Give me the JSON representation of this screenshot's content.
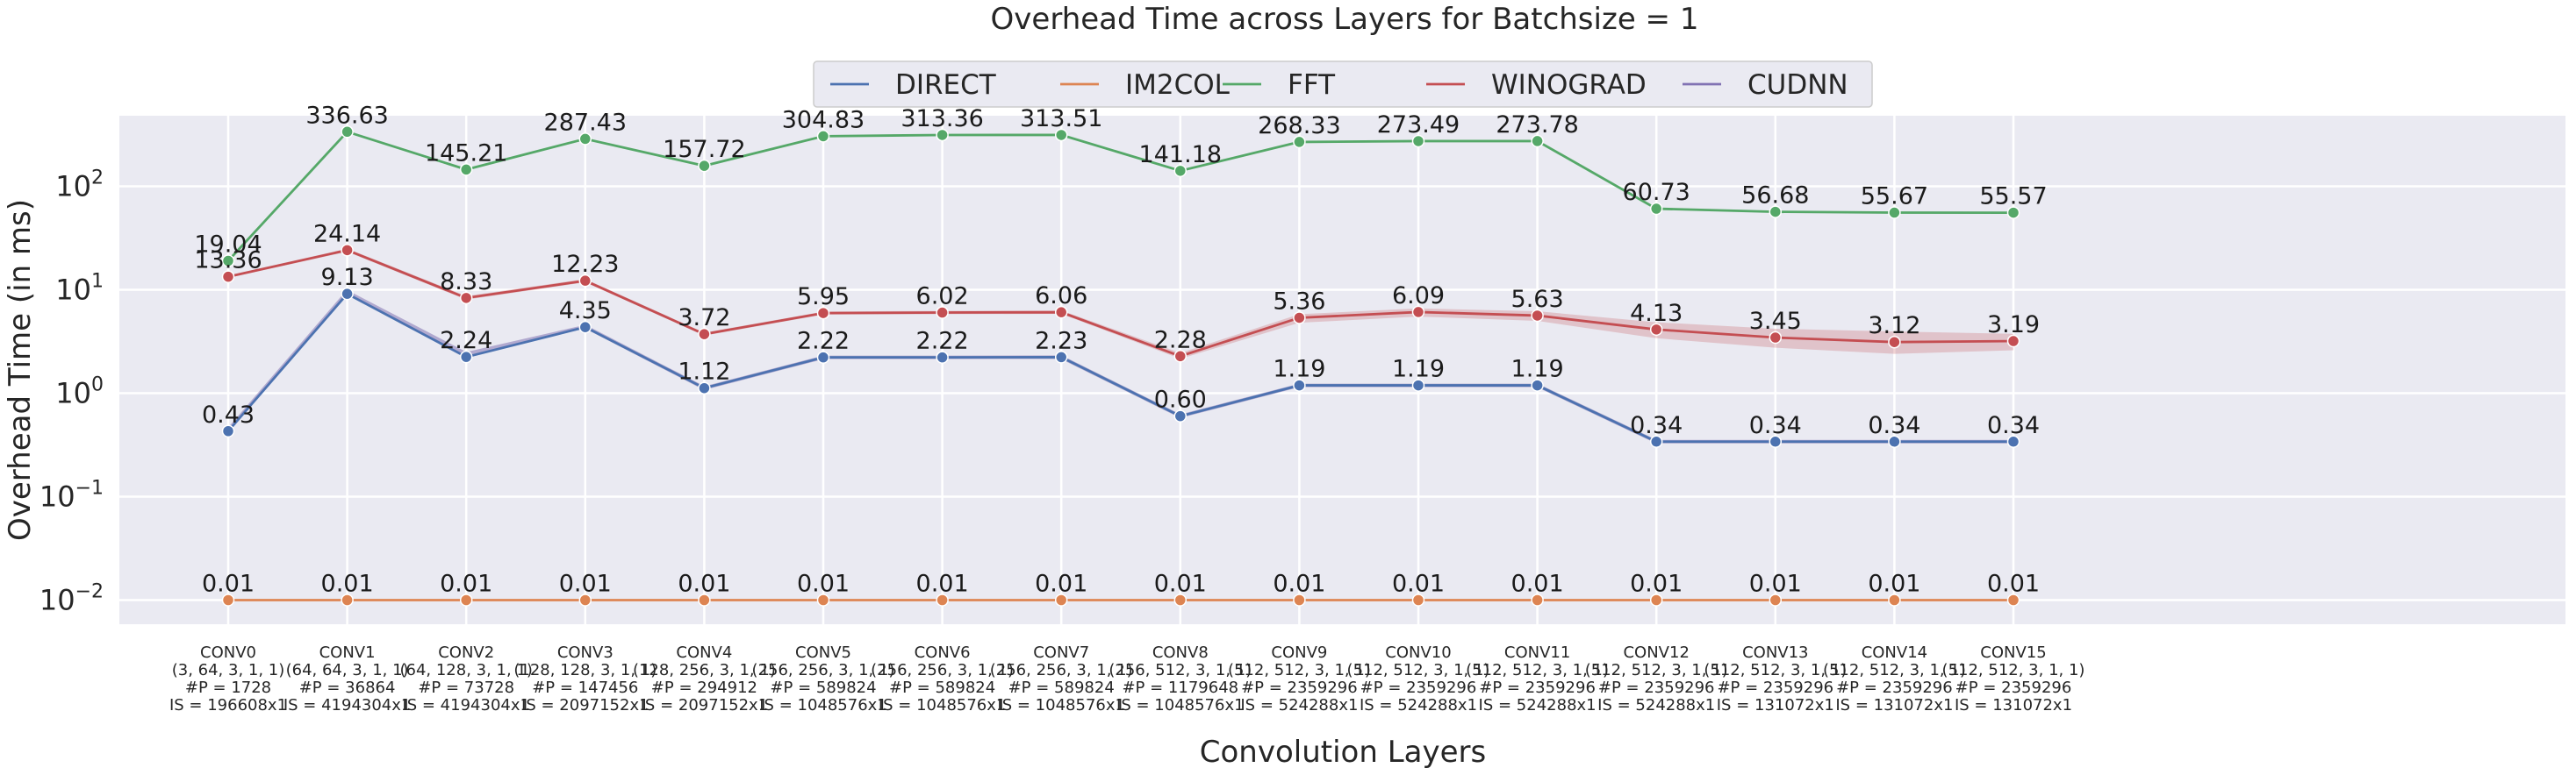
{
  "chart_data": {
    "type": "line",
    "title": "Overhead Time across Layers for Batchsize = 1",
    "xlabel": "Convolution Layers",
    "ylabel": "Overhead Time (in ms)",
    "yscale": "log",
    "ylim": [
      0.006,
      600
    ],
    "yticks": [
      {
        "value": 0.01,
        "base": "10",
        "exp": "−2"
      },
      {
        "value": 0.1,
        "base": "10",
        "exp": "−1"
      },
      {
        "value": 1,
        "base": "10",
        "exp": "0"
      },
      {
        "value": 10,
        "base": "10",
        "exp": "1"
      },
      {
        "value": 100,
        "base": "10",
        "exp": "2"
      }
    ],
    "grid": true,
    "legend_position": "top-center",
    "categories": [
      {
        "name": "CONV0",
        "shape": "(3, 64, 3, 1, 1)",
        "params": "#P = 1728",
        "input": "IS = 196608x1"
      },
      {
        "name": "CONV1",
        "shape": "(64, 64, 3, 1, 1)",
        "params": "#P = 36864",
        "input": "IS = 4194304x1"
      },
      {
        "name": "CONV2",
        "shape": "(64, 128, 3, 1, 1)",
        "params": "#P = 73728",
        "input": "IS = 4194304x1"
      },
      {
        "name": "CONV3",
        "shape": "(128, 128, 3, 1, 1)",
        "params": "#P = 147456",
        "input": "IS = 2097152x1"
      },
      {
        "name": "CONV4",
        "shape": "(128, 256, 3, 1, 1)",
        "params": "#P = 294912",
        "input": "IS = 2097152x1"
      },
      {
        "name": "CONV5",
        "shape": "(256, 256, 3, 1, 1)",
        "params": "#P = 589824",
        "input": "IS = 1048576x1"
      },
      {
        "name": "CONV6",
        "shape": "(256, 256, 3, 1, 1)",
        "params": "#P = 589824",
        "input": "IS = 1048576x1"
      },
      {
        "name": "CONV7",
        "shape": "(256, 256, 3, 1, 1)",
        "params": "#P = 589824",
        "input": "IS = 1048576x1"
      },
      {
        "name": "CONV8",
        "shape": "(256, 512, 3, 1, 1)",
        "params": "#P = 1179648",
        "input": "IS = 1048576x1"
      },
      {
        "name": "CONV9",
        "shape": "(512, 512, 3, 1, 1)",
        "params": "#P = 2359296",
        "input": "IS = 524288x1"
      },
      {
        "name": "CONV10",
        "shape": "(512, 512, 3, 1, 1)",
        "params": "#P = 2359296",
        "input": "IS = 524288x1"
      },
      {
        "name": "CONV11",
        "shape": "(512, 512, 3, 1, 1)",
        "params": "#P = 2359296",
        "input": "IS = 524288x1"
      },
      {
        "name": "CONV12",
        "shape": "(512, 512, 3, 1, 1)",
        "params": "#P = 2359296",
        "input": "IS = 524288x1"
      },
      {
        "name": "CONV13",
        "shape": "(512, 512, 3, 1, 1)",
        "params": "#P = 2359296",
        "input": "IS = 131072x1"
      },
      {
        "name": "CONV14",
        "shape": "(512, 512, 3, 1, 1)",
        "params": "#P = 2359296",
        "input": "IS = 131072x1"
      },
      {
        "name": "CONV15",
        "shape": "(512, 512, 3, 1, 1)",
        "params": "#P = 2359296",
        "input": "IS = 131072x1"
      }
    ],
    "series": [
      {
        "name": "DIRECT",
        "color": "#4c72b0",
        "labeled": true,
        "values": [
          0.43,
          9.13,
          2.24,
          4.35,
          1.12,
          2.22,
          2.22,
          2.23,
          0.6,
          1.19,
          1.19,
          1.19,
          0.34,
          0.34,
          0.34,
          0.34
        ],
        "labels": [
          "0.43",
          "9.13",
          "2.24",
          "4.35",
          "1.12",
          "2.22",
          "2.22",
          "2.23",
          "0.60",
          "1.19",
          "1.19",
          "1.19",
          "0.34",
          "0.34",
          "0.34",
          "0.34"
        ]
      },
      {
        "name": "IM2COL",
        "color": "#dd8452",
        "labeled": true,
        "values": [
          0.01,
          0.01,
          0.01,
          0.01,
          0.01,
          0.01,
          0.01,
          0.01,
          0.01,
          0.01,
          0.01,
          0.01,
          0.01,
          0.01,
          0.01,
          0.01
        ],
        "labels": [
          "0.01",
          "0.01",
          "0.01",
          "0.01",
          "0.01",
          "0.01",
          "0.01",
          "0.01",
          "0.01",
          "0.01",
          "0.01",
          "0.01",
          "0.01",
          "0.01",
          "0.01",
          "0.01"
        ]
      },
      {
        "name": "FFT",
        "color": "#55a868",
        "labeled": true,
        "values": [
          19.04,
          336.63,
          145.21,
          287.43,
          157.72,
          304.83,
          313.36,
          313.51,
          141.18,
          268.33,
          273.49,
          273.78,
          60.73,
          56.68,
          55.67,
          55.57
        ],
        "labels": [
          "19.04",
          "336.63",
          "145.21",
          "287.43",
          "157.72",
          "304.83",
          "313.36",
          "313.51",
          "141.18",
          "268.33",
          "273.49",
          "273.78",
          "60.73",
          "56.68",
          "55.67",
          "55.57"
        ]
      },
      {
        "name": "WINOGRAD",
        "color": "#c44e52",
        "labeled": true,
        "values": [
          13.36,
          24.14,
          8.33,
          12.23,
          3.72,
          5.95,
          6.02,
          6.06,
          2.28,
          5.36,
          6.09,
          5.63,
          4.13,
          3.45,
          3.12,
          3.19
        ],
        "labels": [
          "13.36",
          "24.14",
          "8.33",
          "12.23",
          "3.72",
          "5.95",
          "6.02",
          "6.06",
          "2.28",
          "5.36",
          "6.09",
          "5.63",
          "4.13",
          "3.45",
          "3.12",
          "3.19"
        ],
        "band_low": [
          13.0,
          23.3,
          8.0,
          11.8,
          3.6,
          5.75,
          5.8,
          5.85,
          2.15,
          4.8,
          5.5,
          5.0,
          3.4,
          2.75,
          2.4,
          2.6
        ],
        "band_high": [
          13.7,
          25.0,
          8.7,
          12.7,
          3.85,
          6.15,
          6.25,
          6.3,
          2.45,
          5.8,
          6.6,
          6.2,
          4.85,
          4.2,
          3.95,
          3.75
        ]
      },
      {
        "name": "CUDNN",
        "color": "#8172b3",
        "labeled": false,
        "values": [
          0.44,
          9.5,
          2.4,
          4.4,
          1.12,
          2.22,
          2.22,
          2.23,
          0.6,
          1.19,
          1.19,
          1.19,
          0.34,
          0.34,
          0.34,
          0.34
        ],
        "labels": []
      }
    ]
  }
}
